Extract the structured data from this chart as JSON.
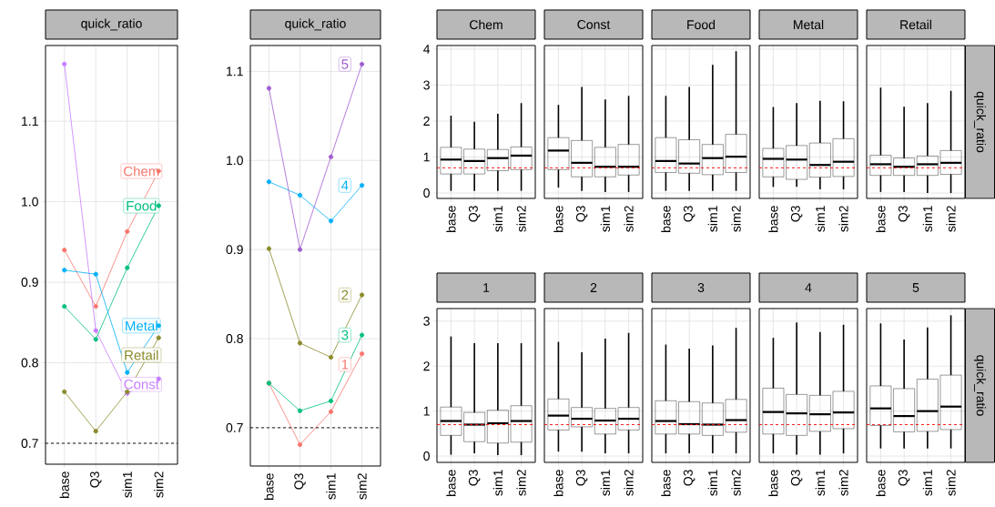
{
  "chart_data": [
    {
      "type": "line",
      "title": "quick_ratio",
      "categories": [
        "base",
        "Q3",
        "sim1",
        "sim2"
      ],
      "marker": "circle",
      "grid": true,
      "legend": "right",
      "ylim": [
        0.674,
        1.194
      ],
      "yticks": [
        0.7,
        0.8,
        0.9,
        {
          "value": 1.0,
          "label": "1.0"
        },
        1.1
      ],
      "ref_lines": [
        {
          "axis": "y",
          "value": 0.7,
          "color": "#000000",
          "line_style": "dashed"
        }
      ],
      "series": [
        {
          "name": "Chem",
          "color": "#f8766d",
          "values": [
            0.94,
            0.87,
            0.963,
            1.038
          ]
        },
        {
          "name": "Const",
          "color": "#c77cff",
          "values": [
            1.171,
            0.84,
            0.762,
            0.78
          ]
        },
        {
          "name": "Food",
          "color": "#00bf7d",
          "values": [
            0.87,
            0.829,
            0.918,
            0.995
          ]
        },
        {
          "name": "Metal",
          "color": "#00b0f6",
          "values": [
            0.915,
            0.91,
            0.788,
            0.846
          ]
        },
        {
          "name": "Retail",
          "color": "#8a8a2a",
          "values": [
            0.764,
            0.715,
            0.764,
            0.831
          ]
        }
      ]
    },
    {
      "type": "line",
      "title": "quick_ratio",
      "categories": [
        "base",
        "Q3",
        "sim1",
        "sim2"
      ],
      "marker": "circle",
      "grid": true,
      "legend": "right",
      "ylim": [
        0.657,
        1.129
      ],
      "yticks": [
        0.7,
        0.8,
        0.9,
        {
          "value": 1.0,
          "label": "1.0"
        },
        1.1
      ],
      "ref_lines": [
        {
          "axis": "y",
          "value": 0.7,
          "color": "#000000",
          "line_style": "dashed"
        }
      ],
      "series": [
        {
          "name": "1",
          "color": "#f8766d",
          "values": [
            0.75,
            0.681,
            0.718,
            0.783
          ]
        },
        {
          "name": "2",
          "color": "#8a8a2a",
          "values": [
            0.901,
            0.795,
            0.779,
            0.849
          ]
        },
        {
          "name": "3",
          "color": "#00bf7d",
          "values": [
            0.75,
            0.719,
            0.73,
            0.804
          ]
        },
        {
          "name": "4",
          "color": "#00b0f6",
          "values": [
            0.976,
            0.961,
            0.932,
            0.972
          ]
        },
        {
          "name": "5",
          "color": "#a05cd0",
          "values": [
            1.081,
            0.9,
            1.004,
            1.108
          ]
        }
      ]
    },
    {
      "type": "box",
      "title": "Chem",
      "categories": [
        "base",
        "Q3",
        "sim1",
        "sim2"
      ],
      "grid": true,
      "ylim": [
        -0.15,
        4.1
      ],
      "yticks": [
        0,
        1,
        2,
        3,
        4
      ],
      "ref_lines": [
        {
          "axis": "y",
          "value": 0.7,
          "color": "#ff0000",
          "line_style": "dashed"
        }
      ],
      "boxes": [
        {
          "low": 0.06,
          "q1": 0.53,
          "median": 0.93,
          "q3": 1.27,
          "high": 2.15
        },
        {
          "low": 0.06,
          "q1": 0.53,
          "median": 0.89,
          "q3": 1.22,
          "high": 1.98
        },
        {
          "low": 0.06,
          "q1": 0.62,
          "median": 0.97,
          "q3": 1.21,
          "high": 2.2
        },
        {
          "low": 0.06,
          "q1": 0.65,
          "median": 1.04,
          "q3": 1.28,
          "high": 2.5
        }
      ]
    },
    {
      "type": "box",
      "title": "Const",
      "categories": [
        "base",
        "Q3",
        "sim1",
        "sim2"
      ],
      "grid": true,
      "tick_labels": "x",
      "ylim": [
        -0.15,
        4.1
      ],
      "yticks": [
        0,
        1,
        2,
        3,
        4
      ],
      "ref_lines": [
        {
          "axis": "y",
          "value": 0.7,
          "color": "#ff0000",
          "line_style": "dashed"
        }
      ],
      "boxes": [
        {
          "low": 0.15,
          "q1": 0.65,
          "median": 1.18,
          "q3": 1.54,
          "high": 2.45
        },
        {
          "low": 0.06,
          "q1": 0.45,
          "median": 0.84,
          "q3": 1.46,
          "high": 2.95
        },
        {
          "low": 0.03,
          "q1": 0.45,
          "median": 0.73,
          "q3": 1.27,
          "high": 2.6
        },
        {
          "low": 0.03,
          "q1": 0.5,
          "median": 0.73,
          "q3": 1.35,
          "high": 2.7
        }
      ]
    },
    {
      "type": "box",
      "title": "Food",
      "categories": [
        "base",
        "Q3",
        "sim1",
        "sim2"
      ],
      "grid": true,
      "tick_labels": "x",
      "ylim": [
        -0.15,
        4.1
      ],
      "yticks": [
        0,
        1,
        2,
        3,
        4
      ],
      "ref_lines": [
        {
          "axis": "y",
          "value": 0.7,
          "color": "#ff0000",
          "line_style": "dashed"
        }
      ],
      "boxes": [
        {
          "low": 0.06,
          "q1": 0.57,
          "median": 0.89,
          "q3": 1.54,
          "high": 2.7
        },
        {
          "low": 0.06,
          "q1": 0.55,
          "median": 0.82,
          "q3": 1.48,
          "high": 2.95
        },
        {
          "low": 0.06,
          "q1": 0.51,
          "median": 0.97,
          "q3": 1.35,
          "high": 3.56
        },
        {
          "low": 0.06,
          "q1": 0.57,
          "median": 1.01,
          "q3": 1.63,
          "high": 3.94
        }
      ]
    },
    {
      "type": "box",
      "title": "Metal",
      "categories": [
        "base",
        "Q3",
        "sim1",
        "sim2"
      ],
      "grid": true,
      "tick_labels": "x",
      "ylim": [
        -0.15,
        4.1
      ],
      "yticks": [
        0,
        1,
        2,
        3,
        4
      ],
      "ref_lines": [
        {
          "axis": "y",
          "value": 0.7,
          "color": "#ff0000",
          "line_style": "dashed"
        }
      ],
      "boxes": [
        {
          "low": 0.17,
          "q1": 0.45,
          "median": 0.95,
          "q3": 1.24,
          "high": 2.39
        },
        {
          "low": 0.17,
          "q1": 0.38,
          "median": 0.93,
          "q3": 1.32,
          "high": 2.5
        },
        {
          "low": 0.1,
          "q1": 0.44,
          "median": 0.78,
          "q3": 1.39,
          "high": 2.56
        },
        {
          "low": 0.1,
          "q1": 0.46,
          "median": 0.87,
          "q3": 1.51,
          "high": 2.55
        }
      ]
    },
    {
      "type": "box",
      "title": "Retail",
      "y2label": "quick_ratio",
      "categories": [
        "base",
        "Q3",
        "sim1",
        "sim2"
      ],
      "grid": true,
      "tick_labels": "x",
      "ylim": [
        -0.15,
        4.1
      ],
      "yticks": [
        0,
        1,
        2,
        3,
        4
      ],
      "ref_lines": [
        {
          "axis": "y",
          "value": 0.7,
          "color": "#ff0000",
          "line_style": "dashed"
        }
      ],
      "boxes": [
        {
          "low": 0.03,
          "q1": 0.49,
          "median": 0.8,
          "q3": 1.05,
          "high": 2.93
        },
        {
          "low": 0.03,
          "q1": 0.49,
          "median": 0.73,
          "q3": 0.97,
          "high": 2.4
        },
        {
          "low": 0.0,
          "q1": 0.49,
          "median": 0.8,
          "q3": 1.03,
          "high": 2.5
        },
        {
          "low": 0.0,
          "q1": 0.52,
          "median": 0.84,
          "q3": 1.18,
          "high": 2.84
        }
      ]
    },
    {
      "type": "box",
      "title": "1",
      "categories": [
        "base",
        "Q3",
        "sim1",
        "sim2"
      ],
      "grid": true,
      "ylim": [
        -0.14,
        3.28
      ],
      "yticks": [
        0,
        1,
        2,
        3
      ],
      "ref_lines": [
        {
          "axis": "y",
          "value": 0.7,
          "color": "#ff0000",
          "line_style": "dashed"
        }
      ],
      "boxes": [
        {
          "low": 0.03,
          "q1": 0.46,
          "median": 0.78,
          "q3": 1.09,
          "high": 2.66
        },
        {
          "low": 0.06,
          "q1": 0.32,
          "median": 0.7,
          "q3": 0.97,
          "high": 2.51
        },
        {
          "low": 0.02,
          "q1": 0.29,
          "median": 0.73,
          "q3": 1.02,
          "high": 2.51
        },
        {
          "low": 0.02,
          "q1": 0.31,
          "median": 0.78,
          "q3": 1.12,
          "high": 2.51
        }
      ]
    },
    {
      "type": "box",
      "title": "2",
      "categories": [
        "base",
        "Q3",
        "sim1",
        "sim2"
      ],
      "grid": true,
      "tick_labels": "x",
      "ylim": [
        -0.14,
        3.28
      ],
      "yticks": [
        0,
        1,
        2,
        3
      ],
      "ref_lines": [
        {
          "axis": "y",
          "value": 0.7,
          "color": "#ff0000",
          "line_style": "dashed"
        }
      ],
      "boxes": [
        {
          "low": 0.1,
          "q1": 0.58,
          "median": 0.9,
          "q3": 1.27,
          "high": 2.54
        },
        {
          "low": 0.1,
          "q1": 0.65,
          "median": 0.83,
          "q3": 1.08,
          "high": 2.31
        },
        {
          "low": 0.06,
          "q1": 0.49,
          "median": 0.79,
          "q3": 1.06,
          "high": 2.61
        },
        {
          "low": 0.06,
          "q1": 0.58,
          "median": 0.83,
          "q3": 1.08,
          "high": 2.74
        }
      ]
    },
    {
      "type": "box",
      "title": "3",
      "categories": [
        "base",
        "Q3",
        "sim1",
        "sim2"
      ],
      "grid": true,
      "tick_labels": "x",
      "ylim": [
        -0.14,
        3.28
      ],
      "yticks": [
        0,
        1,
        2,
        3
      ],
      "ref_lines": [
        {
          "axis": "y",
          "value": 0.7,
          "color": "#ff0000",
          "line_style": "dashed"
        }
      ],
      "boxes": [
        {
          "low": 0.06,
          "q1": 0.49,
          "median": 0.78,
          "q3": 1.23,
          "high": 2.48
        },
        {
          "low": 0.06,
          "q1": 0.49,
          "median": 0.71,
          "q3": 1.21,
          "high": 2.39
        },
        {
          "low": 0.06,
          "q1": 0.46,
          "median": 0.7,
          "q3": 1.18,
          "high": 2.46
        },
        {
          "low": 0.06,
          "q1": 0.53,
          "median": 0.8,
          "q3": 1.26,
          "high": 2.85
        }
      ]
    },
    {
      "type": "box",
      "title": "4",
      "categories": [
        "base",
        "Q3",
        "sim1",
        "sim2"
      ],
      "grid": true,
      "tick_labels": "x",
      "ylim": [
        -0.14,
        3.28
      ],
      "yticks": [
        0,
        1,
        2,
        3
      ],
      "ref_lines": [
        {
          "axis": "y",
          "value": 0.7,
          "color": "#ff0000",
          "line_style": "dashed"
        }
      ],
      "boxes": [
        {
          "low": 0.06,
          "q1": 0.49,
          "median": 0.98,
          "q3": 1.51,
          "high": 2.63
        },
        {
          "low": 0.03,
          "q1": 0.46,
          "median": 0.95,
          "q3": 1.37,
          "high": 2.97
        },
        {
          "low": 0.03,
          "q1": 0.55,
          "median": 0.93,
          "q3": 1.35,
          "high": 2.76
        },
        {
          "low": 0.06,
          "q1": 0.61,
          "median": 0.97,
          "q3": 1.44,
          "high": 2.92
        }
      ]
    },
    {
      "type": "box",
      "title": "5",
      "y2label": "quick_ratio",
      "categories": [
        "base",
        "Q3",
        "sim1",
        "sim2"
      ],
      "grid": true,
      "tick_labels": "x",
      "ylim": [
        -0.14,
        3.28
      ],
      "yticks": [
        0,
        1,
        2,
        3
      ],
      "ref_lines": [
        {
          "axis": "y",
          "value": 0.7,
          "color": "#ff0000",
          "line_style": "dashed"
        }
      ],
      "boxes": [
        {
          "low": 0.17,
          "q1": 0.68,
          "median": 1.06,
          "q3": 1.56,
          "high": 2.95
        },
        {
          "low": 0.17,
          "q1": 0.54,
          "median": 0.89,
          "q3": 1.5,
          "high": 2.59
        },
        {
          "low": 0.17,
          "q1": 0.55,
          "median": 1.0,
          "q3": 1.71,
          "high": 2.86
        },
        {
          "low": 0.17,
          "q1": 0.59,
          "median": 1.1,
          "q3": 1.8,
          "high": 3.13
        }
      ]
    }
  ]
}
